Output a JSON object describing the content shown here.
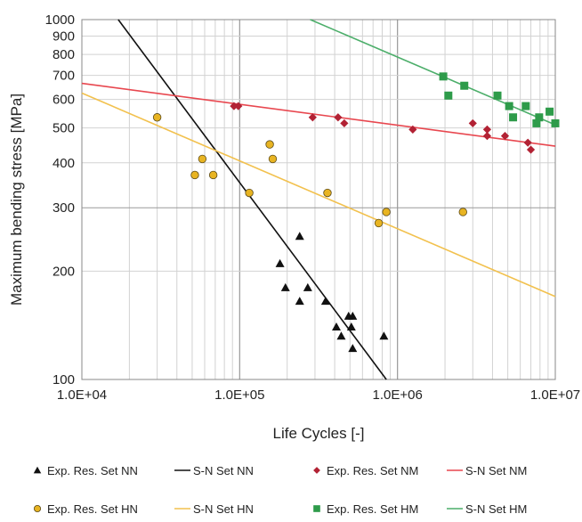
{
  "chart_data": {
    "type": "scatter",
    "title": "",
    "xlabel": "Life Cycles [-]",
    "ylabel": "Maximum bending stress [MPa]",
    "x_scale": "log",
    "y_scale": "log",
    "xlim": [
      10000,
      10000000
    ],
    "ylim": [
      100,
      1000
    ],
    "grid": true,
    "legend_position": "bottom",
    "x_tick_labels": [
      {
        "value": 10000,
        "label": "1.0E+04"
      },
      {
        "value": 100000,
        "label": "1.0E+05"
      },
      {
        "value": 1000000,
        "label": "1.0E+06"
      },
      {
        "value": 10000000,
        "label": "1.0E+07"
      }
    ],
    "y_tick_labels": [
      {
        "value": 100,
        "label": "100"
      },
      {
        "value": 200,
        "label": "200"
      },
      {
        "value": 300,
        "label": "300"
      },
      {
        "value": 400,
        "label": "400"
      },
      {
        "value": 500,
        "label": "500"
      },
      {
        "value": 600,
        "label": "600"
      },
      {
        "value": 700,
        "label": "700"
      },
      {
        "value": 800,
        "label": "800"
      },
      {
        "value": 900,
        "label": "900"
      },
      {
        "value": 1000,
        "label": "1000"
      }
    ],
    "series": [
      {
        "name": "Exp. Res. Set NN",
        "kind": "points",
        "marker": "triangle",
        "color": "#111111",
        "points": [
          [
            240000,
            250
          ],
          [
            180000,
            210
          ],
          [
            195000,
            180
          ],
          [
            240000,
            165
          ],
          [
            270000,
            180
          ],
          [
            350000,
            165
          ],
          [
            410000,
            140
          ],
          [
            440000,
            132
          ],
          [
            490000,
            150
          ],
          [
            510000,
            140
          ],
          [
            520000,
            150
          ],
          [
            520000,
            122
          ],
          [
            820000,
            132
          ]
        ]
      },
      {
        "name": "S-N Set NN",
        "kind": "line",
        "color": "#111111",
        "points": [
          [
            17000,
            1000
          ],
          [
            850000,
            100
          ]
        ]
      },
      {
        "name": "Exp. Res. Set NM",
        "kind": "points",
        "marker": "diamond",
        "color": "#b22234",
        "points": [
          [
            92000,
            575
          ],
          [
            98000,
            575
          ],
          [
            290000,
            535
          ],
          [
            420000,
            535
          ],
          [
            460000,
            515
          ],
          [
            1250000,
            495
          ],
          [
            3000000,
            515
          ],
          [
            3700000,
            495
          ],
          [
            3700000,
            475
          ],
          [
            4800000,
            475
          ],
          [
            6700000,
            455
          ],
          [
            7000000,
            435
          ]
        ]
      },
      {
        "name": "S-N Set NM",
        "kind": "line",
        "color": "#e8474f",
        "points": [
          [
            10000,
            665
          ],
          [
            10000000,
            445
          ]
        ]
      },
      {
        "name": "Exp. Res. Set HN",
        "kind": "points",
        "marker": "circle",
        "color": "#e8b422",
        "points": [
          [
            30000,
            535
          ],
          [
            52000,
            370
          ],
          [
            58000,
            410
          ],
          [
            68000,
            370
          ],
          [
            115000,
            330
          ],
          [
            155000,
            450
          ],
          [
            162000,
            410
          ],
          [
            360000,
            330
          ],
          [
            760000,
            272
          ],
          [
            850000,
            292
          ],
          [
            2600000,
            292
          ]
        ]
      },
      {
        "name": "S-N Set HN",
        "kind": "line",
        "color": "#f2c14e",
        "points": [
          [
            10000,
            625
          ],
          [
            10000000,
            170
          ]
        ]
      },
      {
        "name": "Exp. Res. Set HM",
        "kind": "points",
        "marker": "square",
        "color": "#2e9b4a",
        "points": [
          [
            1950000,
            695
          ],
          [
            2100000,
            615
          ],
          [
            2650000,
            655
          ],
          [
            4300000,
            615
          ],
          [
            5100000,
            575
          ],
          [
            5400000,
            535
          ],
          [
            6500000,
            575
          ],
          [
            7600000,
            515
          ],
          [
            7900000,
            535
          ],
          [
            9200000,
            555
          ],
          [
            10000000,
            515
          ]
        ]
      },
      {
        "name": "S-N Set HM",
        "kind": "line",
        "color": "#4cae6a",
        "points": [
          [
            280000,
            1000
          ],
          [
            10000000,
            510
          ]
        ]
      }
    ]
  }
}
